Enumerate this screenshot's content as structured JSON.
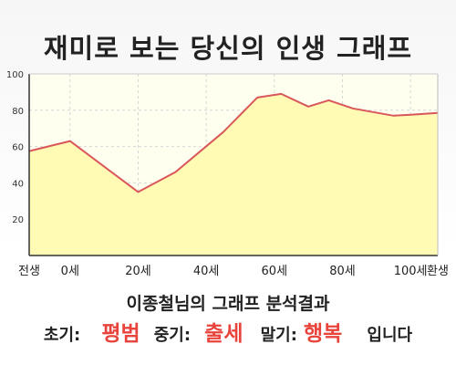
{
  "chart_data": {
    "type": "area",
    "title": "재미로 보는 당신의 인생 그래프",
    "x_labels": [
      "전생",
      "0세",
      "20세",
      "40세",
      "60세",
      "80세",
      "100세",
      "환생"
    ],
    "x": [
      -12,
      0,
      20,
      31,
      45,
      55,
      62,
      70,
      76,
      83,
      95,
      100,
      108
    ],
    "values": [
      57.5,
      63,
      35,
      46,
      68,
      87,
      89,
      82,
      85.5,
      81,
      77,
      77.5,
      78.5
    ],
    "ylim": [
      0,
      100
    ],
    "yticks": [
      20,
      40,
      60,
      80,
      100
    ],
    "grid": true,
    "colors": {
      "fill": "#fffbb4",
      "line": "#d9575b",
      "grid": "#d6d6d6"
    }
  },
  "summary": {
    "subtitle": "이종철님의 그래프 분석결과",
    "early_label": "초기:",
    "early_value": "평범",
    "mid_label": "중기:",
    "mid_value": "출세",
    "late_label": "말기:",
    "late_value": "행복",
    "suffix": "입니다"
  }
}
